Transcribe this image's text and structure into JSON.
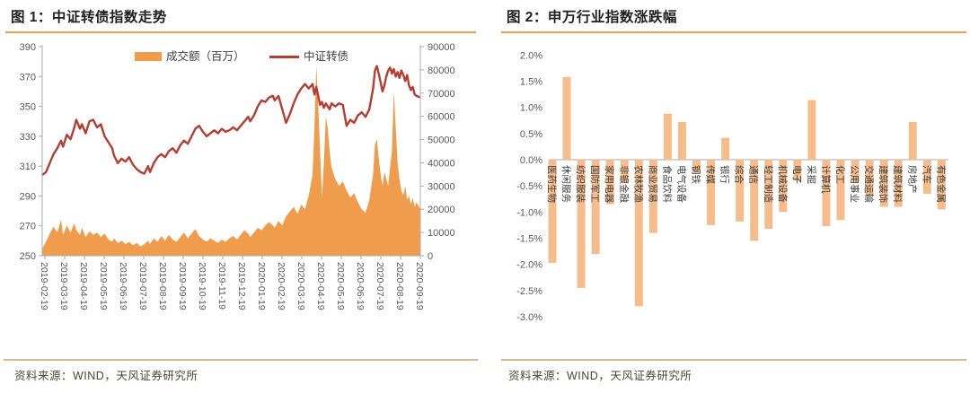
{
  "colors": {
    "title": "#1f1f1f",
    "rule_top": "#e9a052",
    "rule_bottom": "#d8b58c",
    "axis_text": "#595959",
    "axis_line": "#ababab",
    "source_text": "#4c463e",
    "chart1_area": "#ef9c4d",
    "chart1_line": "#b43e32",
    "chart2_bar": "#f5bd8b",
    "cat_label": "#3d3d3d",
    "legend_text": "#404040"
  },
  "panels": [
    {
      "title": "图 1：中证转债指数走势",
      "source": "资料来源：WIND，天风证券研究所",
      "chart_data": {
        "type": "combo-area-line",
        "title": "中证转债指数走势",
        "legend": [
          {
            "label": "成交额（百万）",
            "kind": "area"
          },
          {
            "label": "中证转债",
            "kind": "line"
          }
        ],
        "y_left": {
          "label_ticks": [
            "250",
            "270",
            "290",
            "310",
            "330",
            "350",
            "370",
            "390"
          ],
          "min": 250,
          "max": 390
        },
        "y_right": {
          "label_ticks": [
            "0",
            "10000",
            "20000",
            "30000",
            "40000",
            "50000",
            "60000",
            "70000",
            "80000",
            "90000"
          ],
          "min": 0,
          "max": 90000
        },
        "x_tick_labels": [
          "2019-02-19",
          "2019-03-19",
          "2019-04-19",
          "2019-05-19",
          "2019-06-19",
          "2019-07-19",
          "2019-08-19",
          "2019-09-19",
          "2019-10-19",
          "2019-11-19",
          "2019-12-19",
          "2020-01-19",
          "2020-02-19",
          "2020-03-19",
          "2020-04-19",
          "2020-05-19",
          "2020-06-19",
          "2020-07-19",
          "2020-08-19",
          "2020-09-19"
        ],
        "t": [
          0.0,
          0.01,
          0.02,
          0.03,
          0.04,
          0.05,
          0.055,
          0.065,
          0.075,
          0.085,
          0.09,
          0.1,
          0.105,
          0.115,
          0.125,
          0.135,
          0.145,
          0.155,
          0.165,
          0.175,
          0.185,
          0.19,
          0.2,
          0.21,
          0.22,
          0.23,
          0.24,
          0.25,
          0.26,
          0.27,
          0.28,
          0.285,
          0.295,
          0.305,
          0.315,
          0.325,
          0.335,
          0.345,
          0.355,
          0.365,
          0.375,
          0.385,
          0.395,
          0.405,
          0.415,
          0.425,
          0.435,
          0.445,
          0.455,
          0.465,
          0.475,
          0.485,
          0.495,
          0.505,
          0.515,
          0.525,
          0.535,
          0.545,
          0.55,
          0.56,
          0.57,
          0.58,
          0.59,
          0.6,
          0.61,
          0.615,
          0.625,
          0.635,
          0.645,
          0.655,
          0.665,
          0.675,
          0.685,
          0.695,
          0.705,
          0.715,
          0.72,
          0.725,
          0.73,
          0.735,
          0.74,
          0.745,
          0.75,
          0.755,
          0.76,
          0.765,
          0.775,
          0.785,
          0.795,
          0.805,
          0.815,
          0.825,
          0.835,
          0.845,
          0.855,
          0.865,
          0.875,
          0.88,
          0.885,
          0.89,
          0.895,
          0.9,
          0.905,
          0.91,
          0.915,
          0.92,
          0.925,
          0.93,
          0.935,
          0.94,
          0.945,
          0.95,
          0.955,
          0.96,
          0.965,
          0.97,
          0.975,
          0.98,
          0.985,
          0.99,
          1.0
        ],
        "line_values": [
          304,
          306,
          312,
          318,
          322,
          327,
          323,
          331,
          328,
          336,
          341,
          335,
          338,
          332,
          340,
          341,
          336,
          338,
          330,
          326,
          322,
          317,
          312,
          315,
          313,
          316,
          311,
          308,
          306,
          305,
          310,
          306,
          312,
          316,
          318,
          316,
          320,
          322,
          319,
          324,
          327,
          325,
          330,
          335,
          337,
          333,
          330,
          332,
          334,
          332,
          335,
          333,
          334,
          336,
          334,
          337,
          340,
          343,
          340,
          344,
          350,
          354,
          353,
          356,
          357,
          354,
          357,
          348,
          339,
          345,
          352,
          358,
          362,
          365,
          362,
          365,
          358,
          363,
          357,
          351,
          353,
          349,
          352,
          350,
          348,
          352,
          350,
          352,
          351,
          337,
          341,
          339,
          344,
          346,
          343,
          348,
          362,
          374,
          377,
          372,
          366,
          360,
          364,
          370,
          374,
          376,
          372,
          375,
          370,
          373,
          369,
          374,
          371,
          367,
          371,
          364,
          361,
          363,
          358,
          357,
          356
        ],
        "volume_values": [
          3000,
          6000,
          9500,
          12500,
          10000,
          15500,
          9000,
          13000,
          10000,
          14000,
          11000,
          9000,
          12000,
          8000,
          10500,
          9000,
          10000,
          8000,
          9500,
          7000,
          6000,
          7500,
          5500,
          6500,
          5000,
          6000,
          4500,
          5500,
          4000,
          5000,
          6500,
          5000,
          7500,
          6000,
          8500,
          6500,
          9000,
          7000,
          6000,
          8000,
          10000,
          7500,
          9500,
          11500,
          8500,
          7000,
          6000,
          7500,
          6500,
          5500,
          7000,
          6000,
          7500,
          8500,
          7000,
          9000,
          11000,
          9500,
          8000,
          10000,
          12000,
          11000,
          13000,
          14500,
          13000,
          12000,
          15000,
          13000,
          17000,
          19000,
          21000,
          18000,
          22000,
          20000,
          26000,
          35000,
          55000,
          82000,
          65000,
          45000,
          25000,
          40000,
          60000,
          55000,
          45000,
          38000,
          33000,
          30000,
          32000,
          28000,
          25000,
          27000,
          23000,
          20000,
          18500,
          24000,
          35000,
          48000,
          50000,
          42000,
          35000,
          30000,
          36000,
          33000,
          30000,
          38000,
          45000,
          71000,
          55000,
          40000,
          33000,
          28000,
          26000,
          30000,
          24000,
          26000,
          22000,
          25000,
          21000,
          23000,
          20000
        ]
      }
    },
    {
      "title": "图 2：申万行业指数涨跌幅",
      "source": "资料来源：WIND，天风证券研究所",
      "chart_data": {
        "type": "bar",
        "title": "申万行业指数涨跌幅",
        "y_tick_labels": [
          "2.0%",
          "1.5%",
          "1.0%",
          "0.5%",
          "0.0%",
          "-0.5%",
          "-1.0%",
          "-1.5%",
          "-2.0%",
          "-2.5%",
          "-3.0%"
        ],
        "ylim": [
          -3.0,
          2.0
        ],
        "categories": [
          "医药生物",
          "休闲服务",
          "纺织服装",
          "国防军工",
          "家用电器",
          "非银金融",
          "农林牧渔",
          "商业贸易",
          "食品饮料",
          "电气设备",
          "钢铁",
          "传媒",
          "银行",
          "综合",
          "通信",
          "轻工制造",
          "机械设备",
          "电子",
          "采掘",
          "计算机",
          "化工",
          "公用事业",
          "交通运输",
          "建筑装饰",
          "建筑材料",
          "房地产",
          "汽车",
          "有色金属"
        ],
        "values": [
          -1.97,
          1.58,
          -2.45,
          -1.8,
          -0.85,
          -0.45,
          -2.8,
          -1.4,
          0.88,
          0.72,
          -0.25,
          -1.25,
          0.42,
          -1.18,
          -1.55,
          -1.32,
          -1.0,
          -0.4,
          1.14,
          -1.27,
          -1.15,
          -0.45,
          -0.7,
          -0.9,
          -0.9,
          0.72,
          -0.65,
          -0.95
        ]
      }
    }
  ]
}
